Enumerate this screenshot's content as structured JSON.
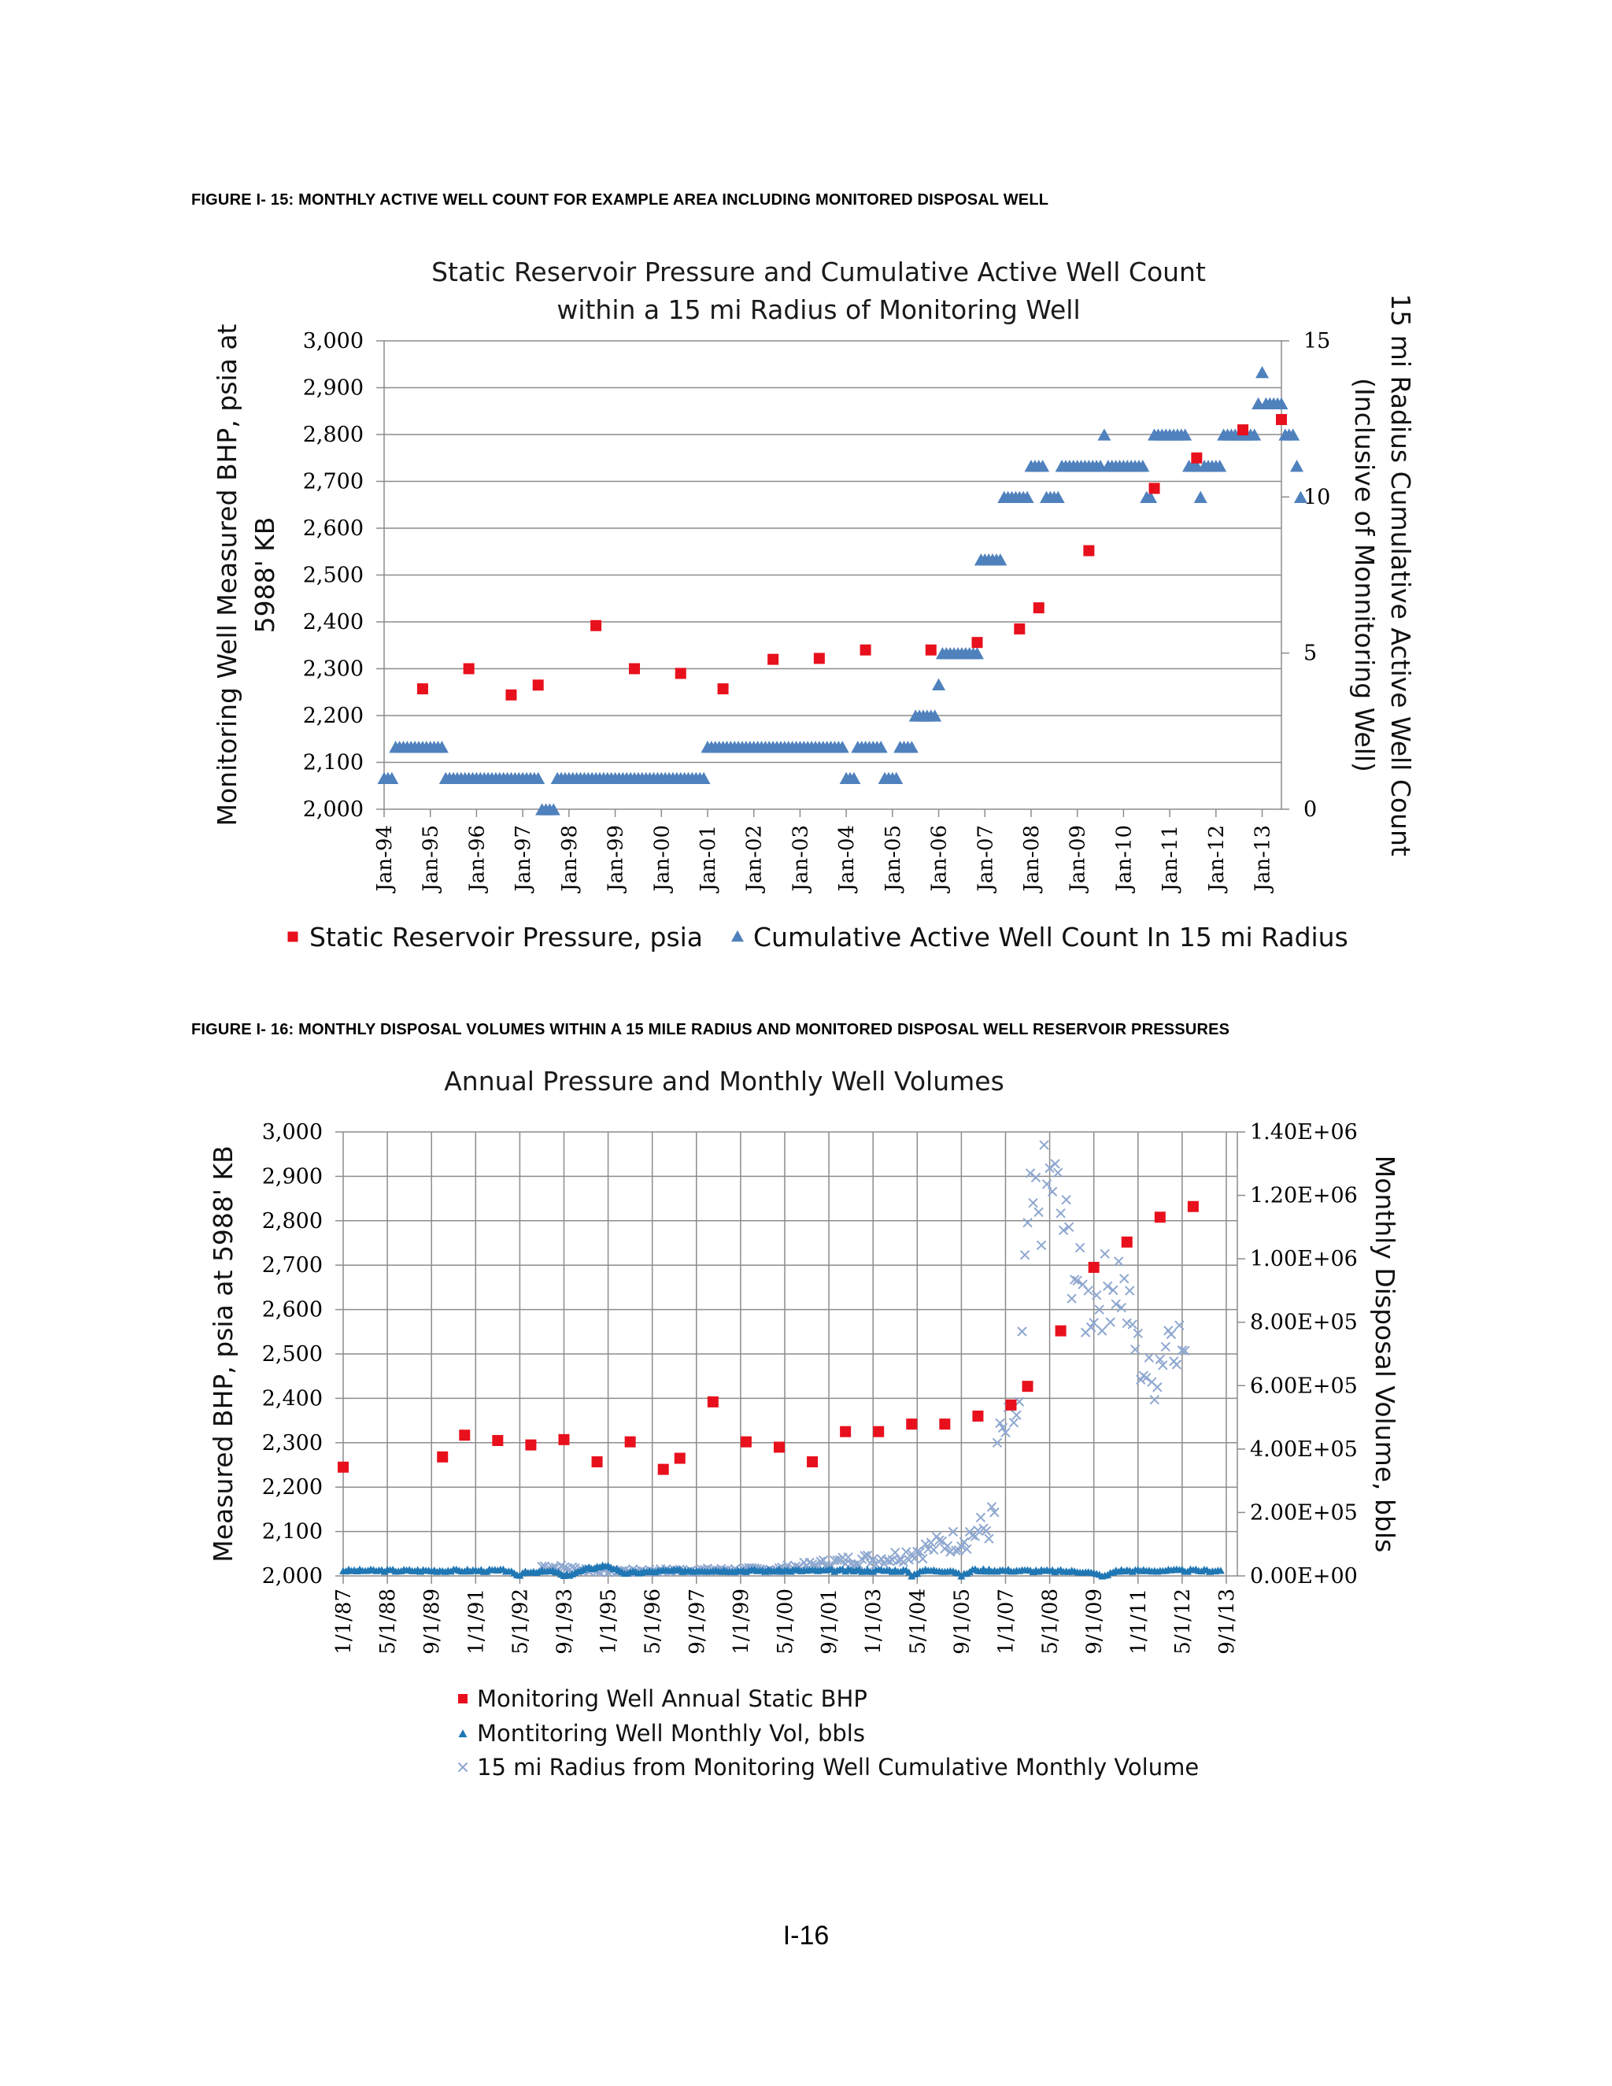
{
  "figures": [
    {
      "caption": "FIGURE I- 15:  MONTHLY ACTIVE WELL COUNT FOR EXAMPLE AREA INCLUDING MONITORED DISPOSAL WELL"
    },
    {
      "caption": "FIGURE I- 16:  MONTHLY DISPOSAL VOLUMES WITHIN A 15 MILE RADIUS AND MONITORED DISPOSAL WELL RESERVOIR PRESSURES"
    }
  ],
  "page_number": "I-16",
  "colors": {
    "pressure": "#e8101c",
    "wellcount": "#4f81bd",
    "volume": "#1f77b4",
    "cumulative": "#8fa8d0",
    "grid": "#8c8c8c"
  },
  "chart_data": [
    {
      "type": "scatter",
      "title": [
        "Static Reservoir Pressure and Cumulative Active Well Count",
        "within a 15 mi Radius of Monitoring Well"
      ],
      "ylabel": [
        "Monitoring Well Measured BHP, psia at",
        "5988' KB"
      ],
      "y2label": [
        "15 mi Radius Cumulative Active Well Count",
        "(Inclusive of Monnitoring Well)"
      ],
      "ylim": [
        2000,
        3000
      ],
      "y2lim": [
        0,
        15
      ],
      "xlim": [
        "1994-01",
        "2013-06"
      ],
      "grid": true,
      "legend": "bottom",
      "yticks": [
        "2,000",
        "2,100",
        "2,200",
        "2,300",
        "2,400",
        "2,500",
        "2,600",
        "2,700",
        "2,800",
        "2,900",
        "3,000"
      ],
      "y2ticks": [
        "0",
        "5",
        "10",
        "15"
      ],
      "xticks": [
        "Jan-94",
        "Jan-95",
        "Jan-96",
        "Jan-97",
        "Jan-98",
        "Jan-99",
        "Jan-00",
        "Jan-01",
        "Jan-02",
        "Jan-03",
        "Jan-04",
        "Jan-05",
        "Jan-06",
        "Jan-07",
        "Jan-08",
        "Jan-09",
        "Jan-10",
        "Jan-11",
        "Jan-12",
        "Jan-13"
      ],
      "series": [
        {
          "name": "Static Reservoir Pressure, psia",
          "marker": "square",
          "points": [
            [
              "1994-11",
              2257
            ],
            [
              "1995-11",
              2300
            ],
            [
              "1996-10",
              2244
            ],
            [
              "1997-05",
              2265
            ],
            [
              "1998-08",
              2392
            ],
            [
              "1999-06",
              2300
            ],
            [
              "2000-06",
              2290
            ],
            [
              "2001-05",
              2257
            ],
            [
              "2002-06",
              2320
            ],
            [
              "2003-06",
              2322
            ],
            [
              "2004-06",
              2340
            ],
            [
              "2005-11",
              2340
            ],
            [
              "2006-11",
              2356
            ],
            [
              "2007-10",
              2385
            ],
            [
              "2008-03",
              2430
            ],
            [
              "2009-04",
              2552
            ],
            [
              "2010-09",
              2685
            ],
            [
              "2011-08",
              2750
            ],
            [
              "2012-08",
              2810
            ],
            [
              "2013-06",
              2832
            ]
          ]
        },
        {
          "name": "Cumulative Active Well Count In 15 mi Radius",
          "marker": "triangle",
          "segments": [
            [
              "1994-01",
              "1994-03",
              1
            ],
            [
              "1994-04",
              "1995-04",
              2
            ],
            [
              "1995-05",
              "1997-05",
              1
            ],
            [
              "1997-06",
              "1997-09",
              0
            ],
            [
              "1997-10",
              "2000-12",
              1
            ],
            [
              "2001-01",
              "2003-12",
              2
            ],
            [
              "2004-01",
              "2004-03",
              1
            ],
            [
              "2004-04",
              "2004-10",
              2
            ],
            [
              "2004-11",
              "2005-02",
              1
            ],
            [
              "2005-03",
              "2005-06",
              2
            ],
            [
              "2005-07",
              "2005-12",
              3
            ],
            [
              "2006-01",
              "2006-01",
              4
            ],
            [
              "2006-02",
              "2006-11",
              5
            ],
            [
              "2006-12",
              "2007-05",
              8
            ],
            [
              "2007-06",
              "2007-12",
              10
            ],
            [
              "2008-01",
              "2008-04",
              11
            ],
            [
              "2008-05",
              "2008-08",
              10
            ],
            [
              "2008-09",
              "2009-07",
              11
            ],
            [
              "2009-08",
              "2009-08",
              12
            ],
            [
              "2009-09",
              "2010-06",
              11
            ],
            [
              "2010-07",
              "2010-08",
              10
            ],
            [
              "2010-09",
              "2011-05",
              12
            ],
            [
              "2011-06",
              "2011-08",
              11
            ],
            [
              "2011-09",
              "2011-09",
              10
            ],
            [
              "2011-10",
              "2012-02",
              11
            ],
            [
              "2012-03",
              "2012-11",
              12
            ],
            [
              "2012-12",
              "2012-12",
              13
            ],
            [
              "2013-01",
              "2013-01",
              14
            ],
            [
              "2013-02",
              "2013-06",
              13
            ],
            [
              "2013-07",
              "2013-09",
              12
            ],
            [
              "2013-10",
              "2013-10",
              11
            ],
            [
              "2013-11",
              "2013-11",
              10
            ]
          ]
        }
      ]
    },
    {
      "type": "scatter",
      "title": "Annual Pressure and Monthly Well Volumes",
      "ylabel": "Measured BHP, psia at 5988' KB",
      "y2label": "Monthly Disposal Volume, bbls",
      "ylim": [
        2000,
        3000
      ],
      "y2lim": [
        0,
        1400000
      ],
      "xlim": [
        "1987-01",
        "2014-01"
      ],
      "grid": true,
      "legend": "bottom",
      "yticks": [
        "2,000",
        "2,100",
        "2,200",
        "2,300",
        "2,400",
        "2,500",
        "2,600",
        "2,700",
        "2,800",
        "2,900",
        "3,000"
      ],
      "y2ticks": [
        "0.00E+00",
        "2.00E+05",
        "4.00E+05",
        "6.00E+05",
        "8.00E+05",
        "1.00E+06",
        "1.20E+06",
        "1.40E+06"
      ],
      "xticks": [
        "1/1/87",
        "5/1/88",
        "9/1/89",
        "1/1/91",
        "5/1/92",
        "9/1/93",
        "1/1/95",
        "5/1/96",
        "9/1/97",
        "1/1/99",
        "5/1/00",
        "9/1/01",
        "1/1/03",
        "5/1/04",
        "9/1/05",
        "1/1/07",
        "5/1/08",
        "9/1/09",
        "1/1/11",
        "5/1/12",
        "9/1/13"
      ],
      "series": [
        {
          "name": "Monitoring Well Annual Static BHP",
          "marker": "square",
          "points": [
            [
              "1987-01",
              2245
            ],
            [
              "1990-01",
              2268
            ],
            [
              "1990-09",
              2317
            ],
            [
              "1991-09",
              2305
            ],
            [
              "1992-09",
              2295
            ],
            [
              "1993-09",
              2307
            ],
            [
              "1994-09",
              2257
            ],
            [
              "1995-09",
              2302
            ],
            [
              "1996-09",
              2240
            ],
            [
              "1997-03",
              2265
            ],
            [
              "1998-03",
              2392
            ],
            [
              "1999-03",
              2302
            ],
            [
              "2000-03",
              2290
            ],
            [
              "2001-03",
              2257
            ],
            [
              "2002-03",
              2325
            ],
            [
              "2003-03",
              2325
            ],
            [
              "2004-03",
              2342
            ],
            [
              "2005-03",
              2342
            ],
            [
              "2006-03",
              2360
            ],
            [
              "2007-03",
              2385
            ],
            [
              "2007-09",
              2427
            ],
            [
              "2008-09",
              2552
            ],
            [
              "2009-09",
              2695
            ],
            [
              "2010-09",
              2752
            ],
            [
              "2011-09",
              2808
            ],
            [
              "2012-09",
              2832
            ]
          ]
        },
        {
          "name": "Montitoring Well Monthly Vol, bbls",
          "marker": "triangle",
          "level_points": [
            [
              "1987-01",
              18000
            ],
            [
              "1992-01",
              18000
            ],
            [
              "1992-04",
              0
            ],
            [
              "1992-07",
              15000
            ],
            [
              "1993-06",
              15000
            ],
            [
              "1993-09",
              0
            ],
            [
              "1994-06",
              25000
            ],
            [
              "1995-01",
              35000
            ],
            [
              "1995-06",
              10000
            ],
            [
              "1997-01",
              18000
            ],
            [
              "2004-01",
              18000
            ],
            [
              "2004-03",
              0
            ],
            [
              "2004-06",
              18000
            ],
            [
              "2005-06",
              18000
            ],
            [
              "2005-09",
              0
            ],
            [
              "2006-01",
              20000
            ],
            [
              "2009-06",
              15000
            ],
            [
              "2010-01",
              0
            ],
            [
              "2010-05",
              18000
            ],
            [
              "2013-07",
              18000
            ]
          ]
        },
        {
          "name": "15 mi Radius from Monitoring Well Cumulative Monthly Volume",
          "marker": "x",
          "trend_points": [
            [
              "1993-01",
              30000
            ],
            [
              "1995-01",
              15000
            ],
            [
              "2000-01",
              20000
            ],
            [
              "2002-06",
              50000
            ],
            [
              "2003-06",
              55000
            ],
            [
              "2004-06",
              80000
            ],
            [
              "2005-06",
              110000
            ],
            [
              "2006-06",
              150000
            ],
            [
              "2006-09",
              180000
            ],
            [
              "2006-10",
              420000
            ],
            [
              "2007-06",
              520000
            ],
            [
              "2007-09",
              1100000
            ],
            [
              "2008-06",
              1250000
            ],
            [
              "2009-01",
              1000000
            ],
            [
              "2009-06",
              850000
            ],
            [
              "2010-01",
              900000
            ],
            [
              "2010-06",
              950000
            ],
            [
              "2011-01",
              700000
            ],
            [
              "2011-06",
              600000
            ],
            [
              "2012-01",
              800000
            ],
            [
              "2012-06",
              700000
            ]
          ]
        }
      ]
    }
  ]
}
